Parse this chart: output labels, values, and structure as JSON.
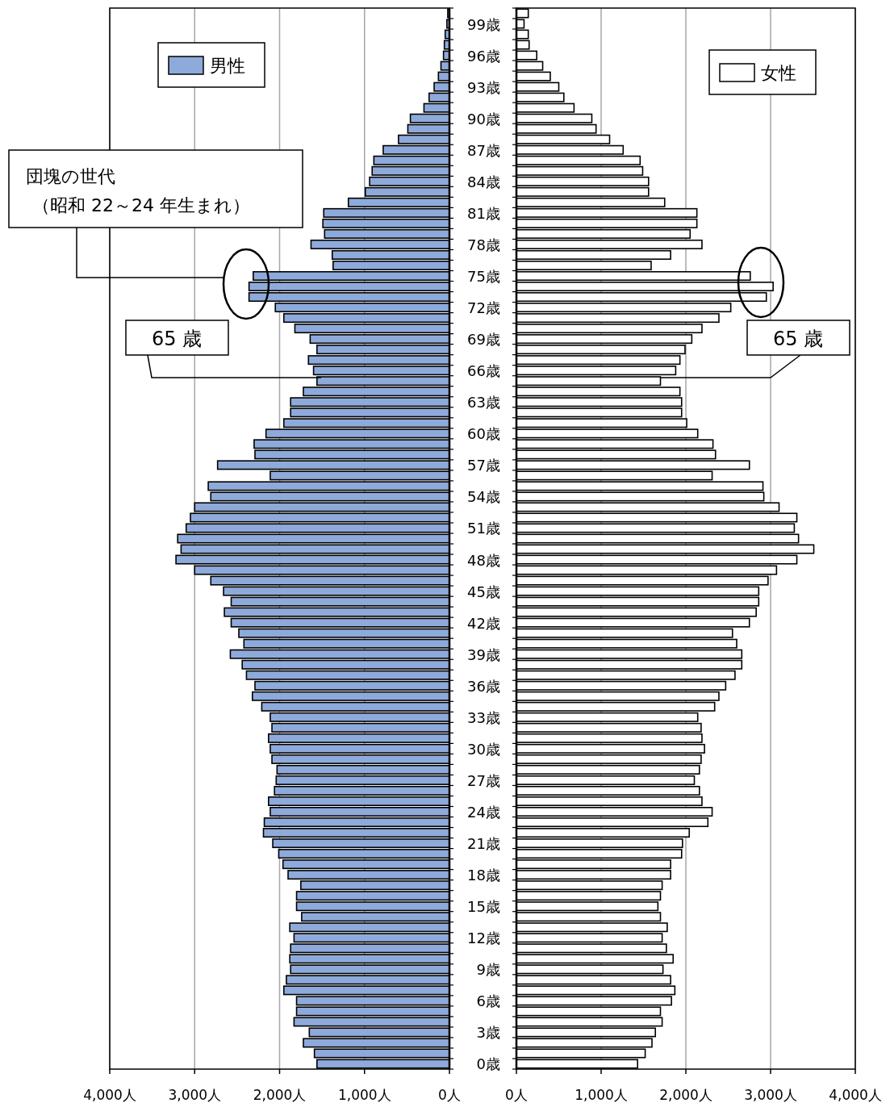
{
  "chart_data": [
    {
      "type": "bar",
      "orientation": "horizontal",
      "categories": [
        null,
        null,
        null,
        null,
        null,
        null,
        null,
        null,
        null,
        null,
        null,
        null,
        null,
        null,
        null,
        null,
        null,
        null,
        null,
        null,
        null,
        null,
        null,
        null,
        null,
        null,
        null,
        null,
        null,
        null,
        null,
        null,
        null,
        null,
        null,
        null,
        null,
        null,
        null,
        null,
        null,
        null,
        null,
        null,
        null,
        null,
        null,
        null,
        null,
        null,
        null,
        null,
        null,
        null,
        null,
        null,
        null,
        null,
        null,
        null,
        null,
        null,
        null,
        null,
        null,
        null,
        null,
        null,
        null,
        null,
        null,
        null,
        null,
        null,
        null,
        null,
        null,
        null,
        null,
        null,
        null,
        null,
        null,
        null,
        null,
        null,
        null,
        null,
        null,
        null,
        null,
        null,
        null,
        null,
        null,
        null,
        null,
        null,
        null,
        null,
        null
      ],
      "series": [
        {
          "name": "男性",
          "color": "#8eaadb",
          "values": [
            20,
            30,
            50,
            60,
            70,
            100,
            130,
            180,
            240,
            300,
            460,
            490,
            600,
            780,
            890,
            910,
            940,
            990,
            1190,
            1480,
            1490,
            1470,
            1630,
            1380,
            1370,
            2310,
            2360,
            2360,
            2050,
            1950,
            1820,
            1640,
            1560,
            1660,
            1600,
            1560,
            1720,
            1870,
            1870,
            1950,
            2160,
            2300,
            2290,
            2730,
            2110,
            2840,
            2810,
            3000,
            3050,
            3100,
            3200,
            3160,
            3220,
            3000,
            2810,
            2660,
            2570,
            2650,
            2570,
            2480,
            2420,
            2580,
            2440,
            2390,
            2290,
            2320,
            2210,
            2110,
            2090,
            2130,
            2110,
            2090,
            2030,
            2040,
            2060,
            2130,
            2110,
            2180,
            2190,
            2080,
            2010,
            1960,
            1900,
            1750,
            1800,
            1800,
            1740,
            1880,
            1830,
            1870,
            1880,
            1870,
            1920,
            1950,
            1800,
            1800,
            1830,
            1650,
            1720,
            1590,
            1560
          ]
        }
      ],
      "xlim": [
        4000,
        0
      ],
      "xticks": [
        {
          "value": 4000,
          "label": "4,000人"
        },
        {
          "value": 3000,
          "label": "3,000人"
        },
        {
          "value": 2000,
          "label": "2,000人"
        },
        {
          "value": 1000,
          "label": "1,000人"
        },
        {
          "value": 0,
          "label": "0人"
        }
      ],
      "grid": "x",
      "legend": "top left",
      "tick_labels": "x",
      "annotations": [
        "団塊の世代",
        "（昭和 22～24 年生まれ）",
        "65 歳"
      ]
    },
    {
      "type": "bar",
      "orientation": "horizontal",
      "categories": [
        null,
        "99歳",
        null,
        null,
        "96歳",
        null,
        null,
        "93歳",
        null,
        null,
        "90歳",
        null,
        null,
        "87歳",
        null,
        null,
        "84歳",
        null,
        null,
        "81歳",
        null,
        null,
        "78歳",
        null,
        null,
        "75歳",
        null,
        null,
        "72歳",
        null,
        null,
        "69歳",
        null,
        null,
        "66歳",
        null,
        null,
        "63歳",
        null,
        null,
        "60歳",
        null,
        null,
        "57歳",
        null,
        null,
        "54歳",
        null,
        null,
        "51歳",
        null,
        null,
        "48歳",
        null,
        null,
        "45歳",
        null,
        null,
        "42歳",
        null,
        null,
        "39歳",
        null,
        null,
        "36歳",
        null,
        null,
        "33歳",
        null,
        null,
        "30歳",
        null,
        null,
        "27歳",
        null,
        null,
        "24歳",
        null,
        null,
        "21歳",
        null,
        null,
        "18歳",
        null,
        null,
        "15歳",
        null,
        null,
        "12歳",
        null,
        null,
        "9歳",
        null,
        null,
        "6歳",
        null,
        null,
        "3歳",
        null,
        null,
        "0歳"
      ],
      "series": [
        {
          "name": "女性",
          "color": "#ffffff",
          "values": [
            140,
            90,
            140,
            150,
            240,
            310,
            400,
            500,
            560,
            680,
            890,
            940,
            1100,
            1260,
            1460,
            1490,
            1560,
            1560,
            1750,
            2130,
            2130,
            2050,
            2190,
            1820,
            1590,
            2760,
            3030,
            2950,
            2530,
            2390,
            2190,
            2070,
            1990,
            1930,
            1880,
            1700,
            1930,
            1950,
            1950,
            2010,
            2140,
            2320,
            2350,
            2750,
            2310,
            2910,
            2920,
            3100,
            3310,
            3280,
            3330,
            3510,
            3310,
            3070,
            2970,
            2860,
            2860,
            2830,
            2750,
            2550,
            2600,
            2660,
            2660,
            2580,
            2470,
            2390,
            2340,
            2140,
            2180,
            2190,
            2220,
            2180,
            2160,
            2100,
            2160,
            2190,
            2310,
            2260,
            2040,
            1960,
            1950,
            1820,
            1820,
            1720,
            1700,
            1670,
            1700,
            1780,
            1720,
            1770,
            1850,
            1730,
            1820,
            1870,
            1830,
            1700,
            1720,
            1640,
            1600,
            1520,
            1430
          ]
        }
      ],
      "xlim": [
        0,
        4000
      ],
      "xticks": [
        {
          "value": 0,
          "label": "0人"
        },
        {
          "value": 1000,
          "label": "1,000人"
        },
        {
          "value": 2000,
          "label": "2,000人"
        },
        {
          "value": 3000,
          "label": "3,000人"
        },
        {
          "value": 4000,
          "label": "4,000人"
        }
      ],
      "grid": "x",
      "legend": "top right",
      "annotations": [
        "65 歳"
      ]
    }
  ]
}
